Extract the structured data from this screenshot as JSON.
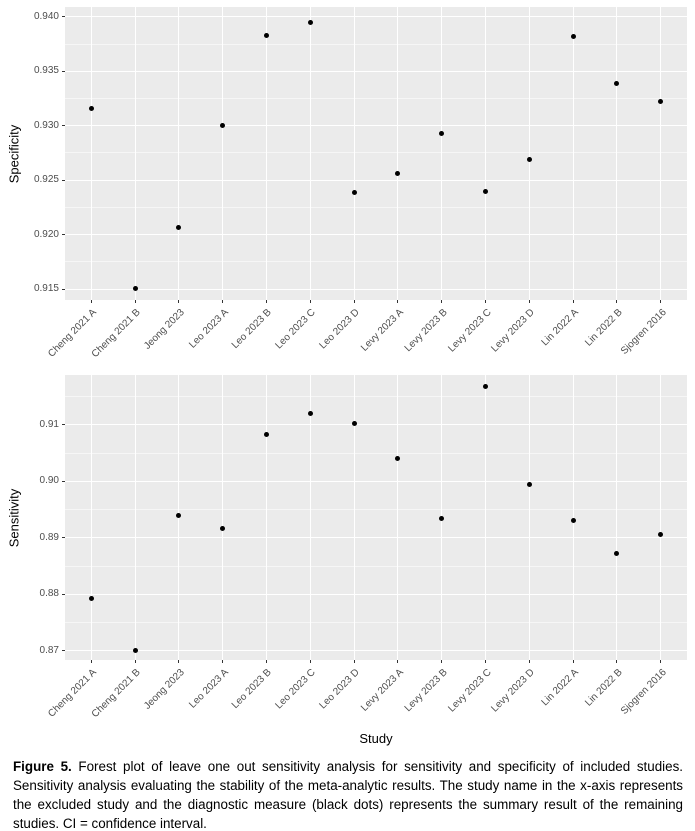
{
  "figure": {
    "x_axis_title": "Study"
  },
  "caption": {
    "label": "Figure 5.",
    "text": " Forest plot of leave one out sensitivity analysis for sensitivity and specificity of included studies. Sensitivity analysis evaluating the stability of the meta-analytic results. The study name in the x-axis represents the excluded study and the diagnostic measure (black dots) represents the summary result of the remaining studies. CI = confidence interval."
  },
  "colors": {
    "panel_bg": "#ebebeb",
    "gridline": "#ffffff",
    "point": "#000000",
    "axis_text": "#4d4d4d",
    "axis_title": "#000000"
  },
  "chart_data": [
    {
      "type": "scatter",
      "title": "",
      "xlabel": "",
      "ylabel": "Specificity",
      "categories": [
        "Cheng 2021 A",
        "Cheng 2021 B",
        "Jeong 2023",
        "Leo 2023 A",
        "Leo 2023 B",
        "Leo 2023 C",
        "Leo 2023 D",
        "Levy 2023 A",
        "Levy 2023 B",
        "Levy 2023 C",
        "Levy 2023 D",
        "Lin 2022 A",
        "Lin 2022 B",
        "Sjogren 2016"
      ],
      "values": [
        0.9316,
        0.9151,
        0.9207,
        0.93,
        0.9383,
        0.9395,
        0.9239,
        0.9256,
        0.9293,
        0.924,
        0.9269,
        0.9382,
        0.9339,
        0.9322
      ],
      "yticks": [
        0.915,
        0.92,
        0.925,
        0.93,
        0.935,
        0.94
      ],
      "ytick_labels": [
        "0.915",
        "0.920",
        "0.925",
        "0.930",
        "0.935",
        "0.940"
      ],
      "ylim": [
        0.914,
        0.9409
      ],
      "grid": "major-and-minor-horizontal, major-vertical",
      "legend": "none"
    },
    {
      "type": "scatter",
      "title": "",
      "xlabel": "Study",
      "ylabel": "Sensitivity",
      "categories": [
        "Cheng 2021 A",
        "Cheng 2021 B",
        "Jeong 2023",
        "Leo 2023 A",
        "Leo 2023 B",
        "Leo 2023 C",
        "Leo 2023 D",
        "Levy 2023 A",
        "Levy 2023 B",
        "Levy 2023 C",
        "Levy 2023 D",
        "Lin 2022 A",
        "Lin 2022 B",
        "Sjogren 2016"
      ],
      "values": [
        0.8793,
        0.8701,
        0.894,
        0.8916,
        0.9082,
        0.912,
        0.9103,
        0.9041,
        0.8934,
        0.9168,
        0.8994,
        0.893,
        0.8873,
        0.8906
      ],
      "yticks": [
        0.87,
        0.88,
        0.89,
        0.9,
        0.91
      ],
      "ytick_labels": [
        "0.87",
        "0.88",
        "0.89",
        "0.90",
        "0.91"
      ],
      "ylim": [
        0.8684,
        0.9188
      ],
      "grid": "major-and-minor-horizontal, major-vertical",
      "legend": "none"
    }
  ]
}
